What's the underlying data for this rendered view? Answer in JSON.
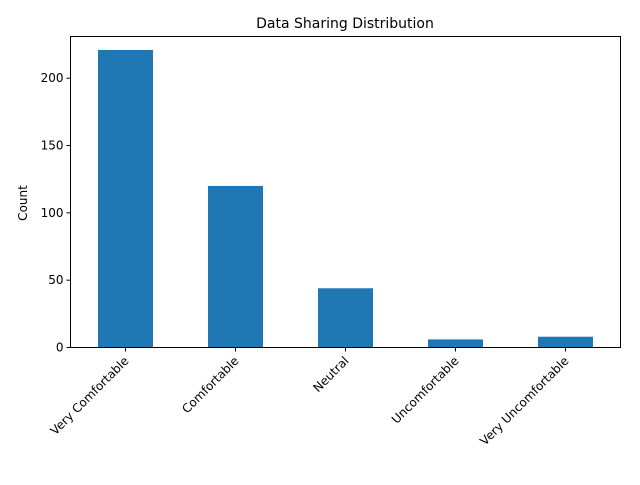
{
  "chart_data": {
    "type": "bar",
    "title": "Data Sharing Distribution",
    "xlabel": "",
    "ylabel": "Count",
    "categories": [
      "Very Comfortable",
      "Comfortable",
      "Neutral",
      "Uncomfortable",
      "Very Uncomfortable"
    ],
    "values": [
      221,
      120,
      44,
      6,
      8
    ],
    "ylim": [
      0,
      231
    ],
    "yticks": [
      0,
      50,
      100,
      150,
      200
    ],
    "grid": false,
    "legend": "none",
    "bar_color": "#1f77b4"
  }
}
